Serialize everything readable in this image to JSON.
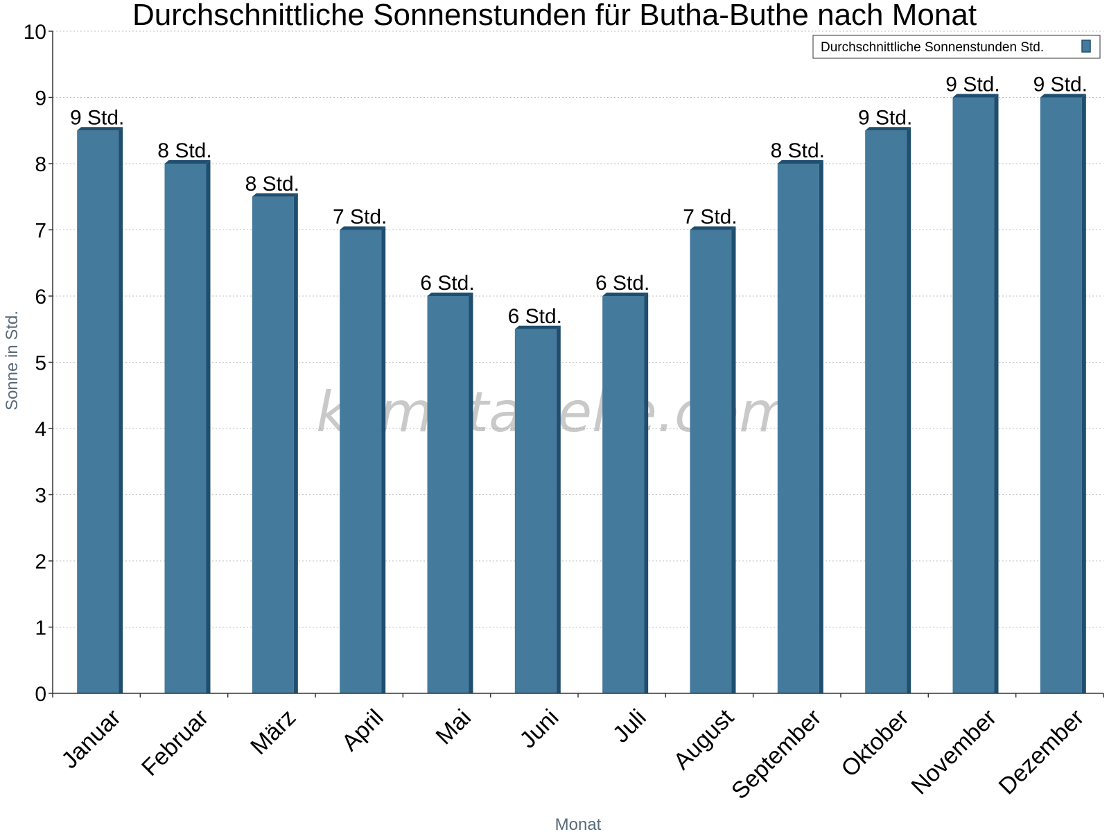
{
  "chart_data": {
    "type": "bar",
    "title": "Durchschnittliche Sonnenstunden für Butha-Buthe nach Monat",
    "xlabel": "Monat",
    "ylabel": "Sonne in Std.",
    "ylim": [
      0,
      10
    ],
    "yticks": [
      "0",
      "1",
      "2",
      "3",
      "4",
      "5",
      "6",
      "7",
      "8",
      "9",
      "10"
    ],
    "grid": true,
    "legend_position": "top-right",
    "watermark": "klimatabelle.com",
    "categories": [
      "Januar",
      "Februar",
      "März",
      "April",
      "Mai",
      "Juni",
      "Juli",
      "August",
      "September",
      "Oktober",
      "November",
      "Dezember"
    ],
    "series": [
      {
        "name": "Durchschnittliche Sonnenstunden Std.",
        "color": "#447a9c",
        "side_color": "#1f4e6e",
        "values": [
          8.5,
          8.0,
          7.5,
          7.0,
          6.0,
          5.5,
          6.0,
          7.0,
          8.0,
          8.5,
          9.0,
          9.0
        ],
        "labels": [
          "9 Std.",
          "8 Std.",
          "8 Std.",
          "7 Std.",
          "6 Std.",
          "6 Std.",
          "6 Std.",
          "7 Std.",
          "8 Std.",
          "9 Std.",
          "9 Std.",
          "9 Std."
        ]
      }
    ]
  }
}
